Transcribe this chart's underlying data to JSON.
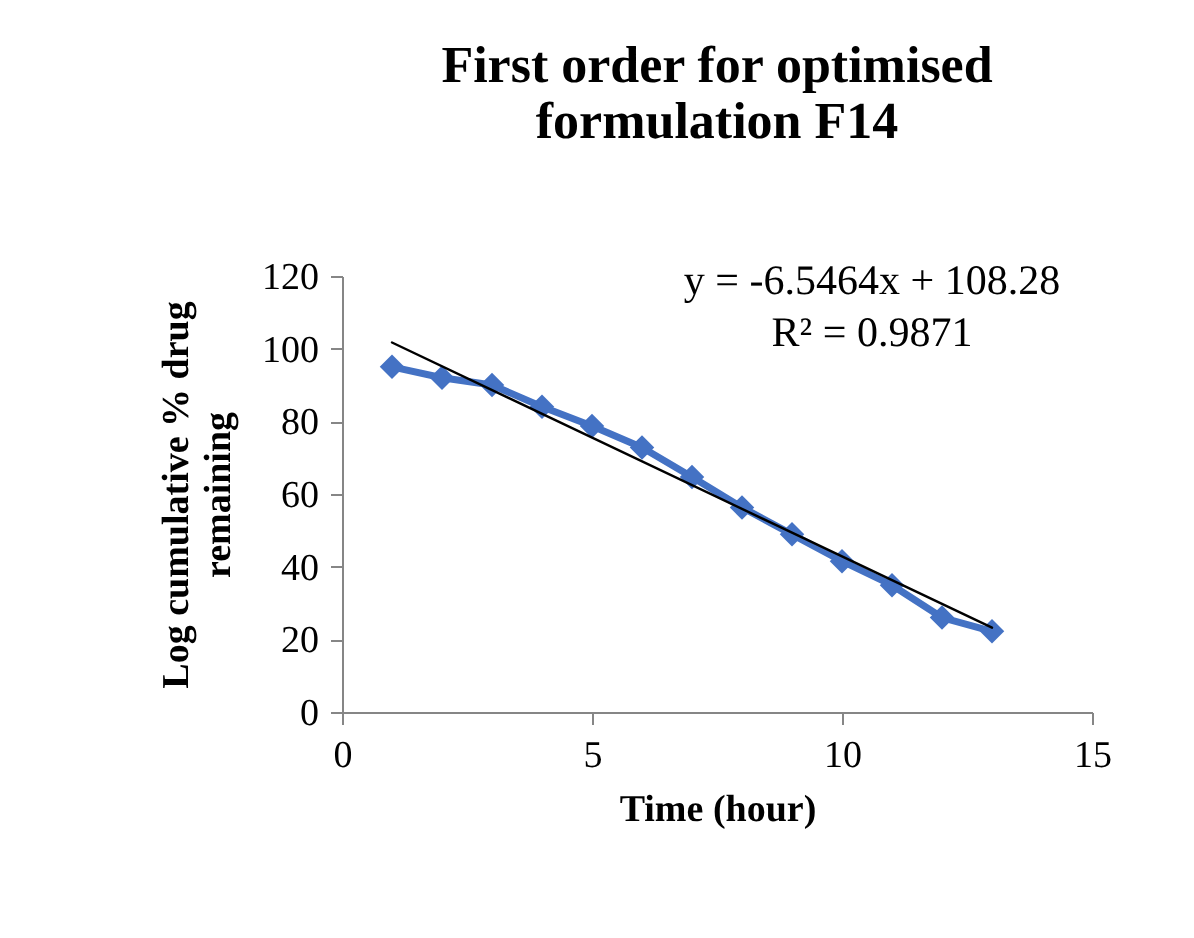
{
  "chart_data": {
    "type": "line",
    "title": "First order for optimised formulation F14",
    "xlabel": "Time (hour)",
    "ylabel": "Log cumulative % drug remaining",
    "x": [
      1,
      2,
      3,
      4,
      5,
      6,
      7,
      8,
      9,
      10,
      11,
      12,
      13
    ],
    "series": [
      {
        "color": "#4472c4",
        "values": [
          95,
          92,
          90,
          84,
          78.7,
          72.8,
          64.7,
          56.3,
          48.9,
          41.5,
          34.9,
          26,
          22.2
        ]
      },
      {
        "type": "line",
        "color": "#000000",
        "marker": "none",
        "x": [
          1,
          13
        ],
        "values": [
          101.7,
          23.2
        ]
      }
    ],
    "annotations": [
      "y = -6.5464x + 108.28",
      "R² = 0.9871"
    ],
    "xlim": [
      0,
      15
    ],
    "xticks": [
      0,
      5,
      10,
      15
    ],
    "ylim": [
      0,
      120
    ],
    "yticks": [
      0,
      20,
      40,
      60,
      80,
      100,
      120
    ],
    "marker": "diamond",
    "line_style": "solid",
    "grid": false
  }
}
